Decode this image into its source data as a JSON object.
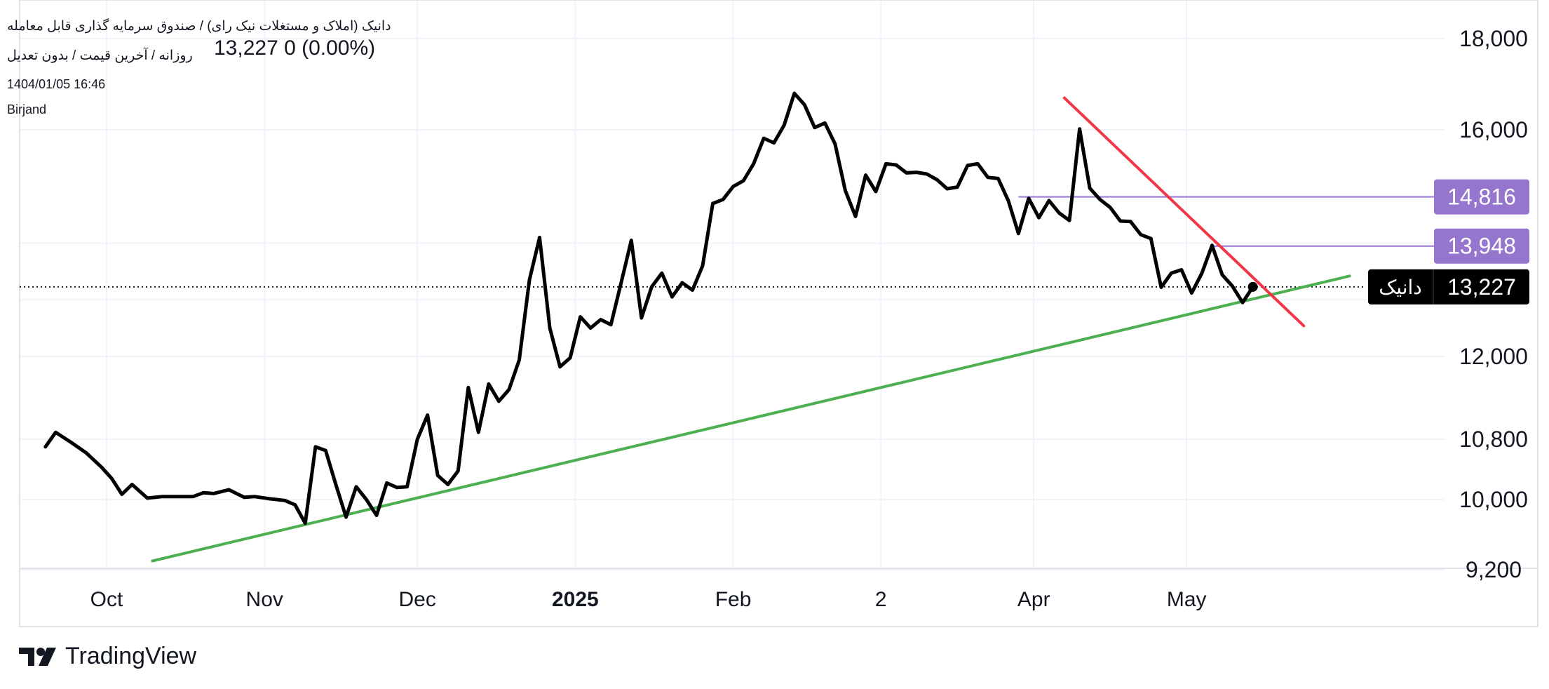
{
  "header": {
    "title": "دانیک (املاک و مستغلات نیک رای) / صندوق سرمایه گذاری قابل معامله",
    "ohlc": "13,227  0 (0.00%)",
    "subtitle": "روزانه / آخرین قیمت / بدون تعدیل",
    "datetime": "1404/01/05 16:46",
    "location": "Birjand"
  },
  "brand": {
    "name": "TradingView"
  },
  "colors": {
    "price_line": "#000000",
    "support_line": "#4caf50",
    "resistance_line": "#f23645",
    "level_label": "#9575cd",
    "current_label": "#000000",
    "grid": "#f0f3fa"
  },
  "chart_data": {
    "type": "line",
    "title": "",
    "xlabel": "",
    "ylabel": "",
    "x_ticks": [
      {
        "label": "Oct",
        "date": "2024-10-01"
      },
      {
        "label": "Nov",
        "date": "2024-11-01"
      },
      {
        "label": "Dec",
        "date": "2024-12-01"
      },
      {
        "label": "2025",
        "date": "2025-01-01",
        "bold": true
      },
      {
        "label": "Feb",
        "date": "2025-02-01"
      },
      {
        "label": "2",
        "date": "2025-03-02"
      },
      {
        "label": "Apr",
        "date": "2025-04-01"
      },
      {
        "label": "May",
        "date": "2025-05-01"
      }
    ],
    "y_ticks": [
      {
        "label": "18,000",
        "value": 18000
      },
      {
        "label": "16,000",
        "value": 16000
      },
      {
        "label": "12,000",
        "value": 12000
      },
      {
        "label": "10,800",
        "value": 10800
      },
      {
        "label": "10,000",
        "value": 10000
      },
      {
        "label": "9,200",
        "value": 9200
      }
    ],
    "ylim": [
      9200,
      18000
    ],
    "xlim": [
      "2024-09-19",
      "2025-06-05"
    ],
    "series": [
      {
        "values": [
          [
            "2024-09-19",
            10700
          ],
          [
            "2024-09-21",
            10900
          ],
          [
            "2024-09-24",
            10760
          ],
          [
            "2024-09-27",
            10620
          ],
          [
            "2024-09-30",
            10430
          ],
          [
            "2024-10-02",
            10280
          ],
          [
            "2024-10-04",
            10070
          ],
          [
            "2024-10-06",
            10200
          ],
          [
            "2024-10-09",
            10020
          ],
          [
            "2024-10-12",
            10040
          ],
          [
            "2024-10-15",
            10040
          ],
          [
            "2024-10-18",
            10040
          ],
          [
            "2024-10-20",
            10090
          ],
          [
            "2024-10-22",
            10080
          ],
          [
            "2024-10-25",
            10130
          ],
          [
            "2024-10-28",
            10030
          ],
          [
            "2024-10-30",
            10040
          ],
          [
            "2024-11-02",
            10010
          ],
          [
            "2024-11-05",
            9990
          ],
          [
            "2024-11-07",
            9940
          ],
          [
            "2024-11-09",
            9730
          ],
          [
            "2024-11-11",
            10700
          ],
          [
            "2024-11-13",
            10650
          ],
          [
            "2024-11-15",
            10200
          ],
          [
            "2024-11-17",
            9800
          ],
          [
            "2024-11-19",
            10170
          ],
          [
            "2024-11-21",
            10000
          ],
          [
            "2024-11-23",
            9820
          ],
          [
            "2024-11-25",
            10220
          ],
          [
            "2024-11-27",
            10160
          ],
          [
            "2024-11-29",
            10170
          ],
          [
            "2024-12-01",
            10800
          ],
          [
            "2024-12-03",
            11150
          ],
          [
            "2024-12-05",
            10320
          ],
          [
            "2024-12-07",
            10200
          ],
          [
            "2024-12-09",
            10380
          ],
          [
            "2024-12-11",
            11550
          ],
          [
            "2024-12-13",
            10900
          ],
          [
            "2024-12-15",
            11600
          ],
          [
            "2024-12-17",
            11350
          ],
          [
            "2024-12-19",
            11520
          ],
          [
            "2024-12-21",
            11950
          ],
          [
            "2024-12-23",
            13350
          ],
          [
            "2024-12-25",
            14100
          ],
          [
            "2024-12-27",
            12500
          ],
          [
            "2024-12-29",
            11850
          ],
          [
            "2024-12-31",
            11980
          ],
          [
            "2025-01-02",
            12700
          ],
          [
            "2025-01-04",
            12500
          ],
          [
            "2025-01-06",
            12650
          ],
          [
            "2025-01-08",
            12560
          ],
          [
            "2025-01-10",
            13300
          ],
          [
            "2025-01-12",
            14050
          ],
          [
            "2025-01-14",
            12680
          ],
          [
            "2025-01-16",
            13230
          ],
          [
            "2025-01-18",
            13470
          ],
          [
            "2025-01-20",
            13050
          ],
          [
            "2025-01-22",
            13300
          ],
          [
            "2025-01-24",
            13170
          ],
          [
            "2025-01-26",
            13600
          ],
          [
            "2025-01-28",
            14700
          ],
          [
            "2025-01-30",
            14770
          ],
          [
            "2025-02-01",
            15000
          ],
          [
            "2025-02-03",
            15100
          ],
          [
            "2025-02-05",
            15400
          ],
          [
            "2025-02-07",
            15850
          ],
          [
            "2025-02-09",
            15770
          ],
          [
            "2025-02-11",
            16100
          ],
          [
            "2025-02-13",
            16800
          ],
          [
            "2025-02-15",
            16550
          ],
          [
            "2025-02-17",
            16050
          ],
          [
            "2025-02-19",
            16150
          ],
          [
            "2025-02-21",
            15750
          ],
          [
            "2025-02-23",
            14930
          ],
          [
            "2025-02-25",
            14470
          ],
          [
            "2025-02-27",
            15200
          ],
          [
            "2025-03-01",
            14910
          ],
          [
            "2025-03-03",
            15400
          ],
          [
            "2025-03-05",
            15380
          ],
          [
            "2025-03-07",
            15240
          ],
          [
            "2025-03-09",
            15250
          ],
          [
            "2025-03-11",
            15220
          ],
          [
            "2025-03-13",
            15120
          ],
          [
            "2025-03-15",
            14960
          ],
          [
            "2025-03-17",
            14990
          ],
          [
            "2025-03-19",
            15370
          ],
          [
            "2025-03-21",
            15400
          ],
          [
            "2025-03-23",
            15160
          ],
          [
            "2025-03-25",
            15140
          ],
          [
            "2025-03-27",
            14750
          ],
          [
            "2025-03-29",
            14170
          ],
          [
            "2025-03-31",
            14790
          ],
          [
            "2025-04-02",
            14450
          ],
          [
            "2025-04-04",
            14750
          ],
          [
            "2025-04-06",
            14530
          ],
          [
            "2025-04-08",
            14400
          ],
          [
            "2025-04-10",
            16020
          ],
          [
            "2025-04-12",
            14970
          ],
          [
            "2025-04-14",
            14770
          ],
          [
            "2025-04-16",
            14630
          ],
          [
            "2025-04-18",
            14390
          ],
          [
            "2025-04-20",
            14380
          ],
          [
            "2025-04-22",
            14150
          ],
          [
            "2025-04-24",
            14080
          ],
          [
            "2025-04-26",
            13220
          ],
          [
            "2025-04-28",
            13470
          ],
          [
            "2025-04-30",
            13530
          ],
          [
            "2025-05-02",
            13120
          ],
          [
            "2025-05-04",
            13470
          ],
          [
            "2025-05-06",
            13960
          ],
          [
            "2025-05-08",
            13440
          ],
          [
            "2025-05-10",
            13240
          ],
          [
            "2025-05-12",
            12950
          ],
          [
            "2025-05-14",
            13227
          ]
        ]
      }
    ],
    "current": {
      "label": "دانیک",
      "value": "13,227",
      "price": 13227,
      "date": "2025-05-14"
    },
    "levels": [
      {
        "label": "14,816",
        "value": 14816,
        "from": "2025-03-29"
      },
      {
        "label": "13,948",
        "value": 13948,
        "from": "2025-05-06"
      }
    ],
    "trendlines": [
      {
        "name": "support",
        "from": [
          "2024-10-10",
          9300
        ],
        "to": [
          "2025-06-02",
          13420
        ]
      },
      {
        "name": "resistance",
        "from": [
          "2025-04-07",
          16700
        ],
        "to": [
          "2025-05-24",
          12540
        ]
      }
    ],
    "grid": true,
    "legend": "none"
  }
}
